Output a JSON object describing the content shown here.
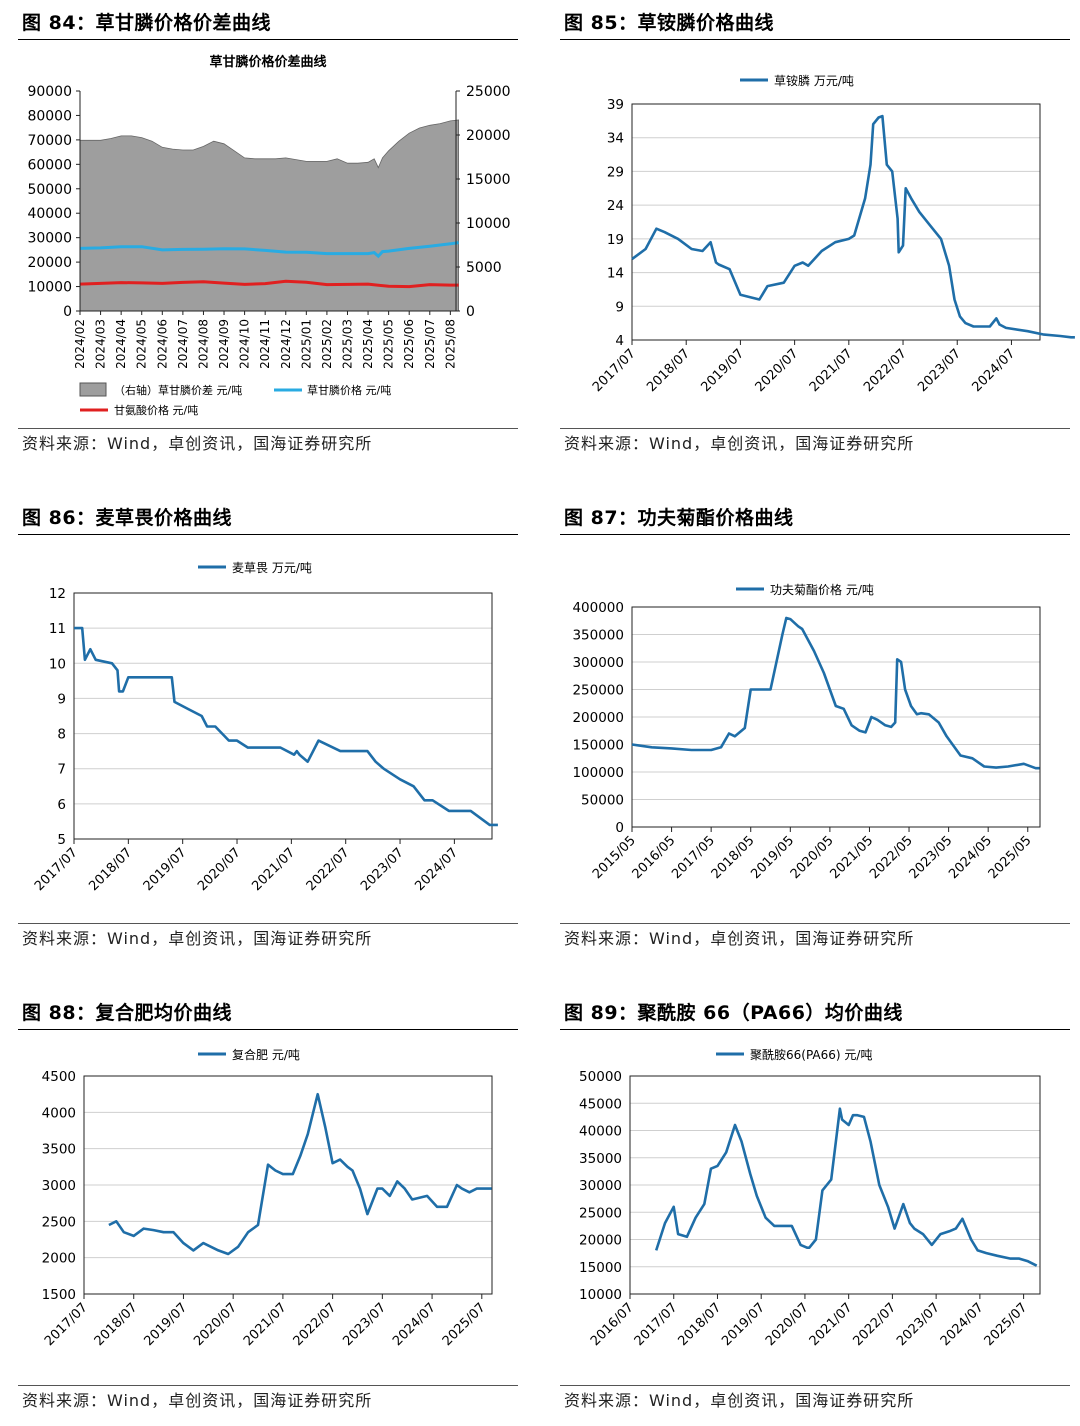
{
  "figures": [
    {
      "caption": "图 84：草甘膦价格价差曲线",
      "source": "资料来源：Wind，卓创资讯，国海证券研究所",
      "chart_data": {
        "type": "line",
        "title": "草甘膦价格价差曲线",
        "left_ylim": [
          0,
          90000
        ],
        "left_yticks": [
          "0",
          "10000",
          "20000",
          "30000",
          "40000",
          "50000",
          "60000",
          "70000",
          "80000",
          "90000"
        ],
        "right_ylim": [
          0,
          25000
        ],
        "right_yticks": [
          "0",
          "5000",
          "10000",
          "15000",
          "20000",
          "25000"
        ],
        "x_tick_labels": [
          "2024/02",
          "2024/03",
          "2024/04",
          "2024/05",
          "2024/06",
          "2024/07",
          "2024/08",
          "2024/09",
          "2024/10",
          "2024/11",
          "2024/12",
          "2025/01",
          "2025/02",
          "2025/03",
          "2025/04",
          "2025/05",
          "2025/06",
          "2025/07",
          "2025/08"
        ],
        "grid": false,
        "legend_position": "bottom",
        "series": [
          {
            "name": "（右轴）草甘膦价差 元/吨",
            "axis": "right",
            "style": "area",
            "color": "#9e9e9e",
            "x": [
              0,
              0.5,
              1,
              1.5,
              2,
              2.5,
              3,
              3.5,
              4,
              4.5,
              5,
              5.5,
              6,
              6.5,
              7,
              7.5,
              8,
              8.5,
              9,
              9.5,
              10,
              10.5,
              11,
              11.5,
              12,
              12.5,
              13,
              13.5,
              14,
              14.3,
              14.5,
              14.7,
              15,
              15.5,
              16,
              16.5,
              17,
              17.5,
              18,
              18.4
            ],
            "values": [
              19400,
              19400,
              19400,
              19600,
              19900,
              19900,
              19700,
              19300,
              18600,
              18400,
              18300,
              18300,
              18700,
              19300,
              19000,
              18200,
              17400,
              17300,
              17300,
              17300,
              17400,
              17200,
              17000,
              17000,
              17000,
              17300,
              16800,
              16800,
              16900,
              17300,
              16300,
              17400,
              18200,
              19300,
              20200,
              20800,
              21100,
              21300,
              21600,
              21700
            ]
          },
          {
            "name": "草甘膦价格 元/吨",
            "axis": "left",
            "style": "line",
            "color": "#29abe2",
            "x": [
              0,
              1,
              2,
              3,
              4,
              5,
              6,
              7,
              8,
              9,
              10,
              11,
              12,
              13,
              14,
              14.3,
              14.5,
              14.7,
              15,
              16,
              17,
              18,
              18.4
            ],
            "values": [
              25600,
              25800,
              26300,
              26300,
              25000,
              25200,
              25300,
              25500,
              25400,
              24800,
              24100,
              24000,
              23500,
              23500,
              23500,
              23900,
              22400,
              24300,
              24500,
              25600,
              26500,
              27500,
              28000
            ]
          },
          {
            "name": "甘氨酸价格 元/吨",
            "axis": "left",
            "style": "line",
            "color": "#e02020",
            "x": [
              0,
              1,
              2,
              3,
              4,
              5,
              6,
              7,
              8,
              9,
              10,
              11,
              12,
              13,
              14,
              15,
              16,
              17,
              18,
              18.4
            ],
            "values": [
              11000,
              11300,
              11600,
              11500,
              11300,
              11700,
              12000,
              11400,
              10900,
              11200,
              12200,
              11800,
              10800,
              10900,
              11000,
              10100,
              10000,
              10800,
              10600,
              10600
            ]
          }
        ]
      }
    },
    {
      "caption": "图 85：草铵膦价格曲线",
      "source": "资料来源：Wind，卓创资讯，国海证券研究所",
      "chart_data": {
        "type": "line",
        "ylim": [
          4,
          39
        ],
        "yticks": [
          "4",
          "9",
          "14",
          "19",
          "24",
          "29",
          "34",
          "39"
        ],
        "x_tick_labels": [
          "2017/07",
          "2018/07",
          "2019/07",
          "2020/07",
          "2021/07",
          "2022/07",
          "2023/07",
          "2024/07"
        ],
        "grid": true,
        "legend_position": "top",
        "series": [
          {
            "name": "草铵膦 万元/吨",
            "color": "#1f6ea8",
            "x": [
              0,
              0.25,
              0.45,
              0.6,
              0.85,
              1.1,
              1.3,
              1.45,
              1.55,
              1.6,
              1.8,
              2.0,
              2.2,
              2.35,
              2.5,
              2.8,
              3.0,
              3.15,
              3.25,
              3.5,
              3.75,
              4.0,
              4.1,
              4.3,
              4.4,
              4.45,
              4.55,
              4.62,
              4.7,
              4.8,
              4.9,
              4.92,
              5.0,
              5.05,
              5.15,
              5.3,
              5.5,
              5.7,
              5.85,
              5.95,
              6.05,
              6.15,
              6.3,
              6.6,
              6.72,
              6.78,
              6.9,
              7.3,
              7.6,
              7.9,
              8.1,
              8.17
            ],
            "values": [
              16,
              17.5,
              20.5,
              20,
              19,
              17.5,
              17.2,
              18.5,
              15.5,
              15.2,
              14.5,
              10.7,
              10.3,
              10,
              12,
              12.5,
              15,
              15.5,
              15,
              17.2,
              18.5,
              19,
              19.5,
              25,
              30,
              36,
              37,
              37.2,
              30,
              29,
              22,
              17,
              18,
              26.5,
              25,
              23,
              21,
              19,
              15,
              10,
              7.5,
              6.5,
              6,
              6,
              7.2,
              6.3,
              5.8,
              5.3,
              4.8,
              4.6,
              4.4,
              4.4
            ]
          }
        ]
      }
    },
    {
      "caption": "图 86：麦草畏价格曲线",
      "source": "资料来源：Wind，卓创资讯，国海证券研究所",
      "chart_data": {
        "type": "line",
        "ylim": [
          5,
          12
        ],
        "yticks": [
          "5",
          "6",
          "7",
          "8",
          "9",
          "10",
          "11",
          "12"
        ],
        "x_tick_labels": [
          "2017/07",
          "2018/07",
          "2019/07",
          "2020/07",
          "2021/07",
          "2022/07",
          "2023/07",
          "2024/07"
        ],
        "grid": true,
        "legend_position": "top",
        "series": [
          {
            "name": "麦草畏 万元/吨",
            "color": "#1f6ea8",
            "x": [
              0,
              0.15,
              0.2,
              0.3,
              0.4,
              0.7,
              0.8,
              0.83,
              0.9,
              1.0,
              1.8,
              1.85,
              2.1,
              2.35,
              2.45,
              2.6,
              2.85,
              3.0,
              3.2,
              3.8,
              4.05,
              4.1,
              4.15,
              4.3,
              4.5,
              4.9,
              5.3,
              5.4,
              5.55,
              5.7,
              6.0,
              6.25,
              6.45,
              6.6,
              6.9,
              7.1,
              7.3,
              7.65,
              7.8
            ],
            "values": [
              11,
              11,
              10.1,
              10.4,
              10.1,
              10,
              9.8,
              9.2,
              9.2,
              9.6,
              9.6,
              8.9,
              8.7,
              8.5,
              8.2,
              8.2,
              7.8,
              7.8,
              7.6,
              7.6,
              7.4,
              7.5,
              7.4,
              7.2,
              7.8,
              7.5,
              7.5,
              7.5,
              7.2,
              7.0,
              6.7,
              6.5,
              6.1,
              6.1,
              5.8,
              5.8,
              5.8,
              5.4,
              5.4
            ]
          }
        ]
      }
    },
    {
      "caption": "图 87：功夫菊酯价格曲线",
      "source": "资料来源：Wind，卓创资讯，国海证券研究所",
      "chart_data": {
        "type": "line",
        "ylim": [
          0,
          400000
        ],
        "yticks": [
          "0",
          "50000",
          "100000",
          "150000",
          "200000",
          "250000",
          "300000",
          "350000",
          "400000"
        ],
        "x_tick_labels": [
          "2015/05",
          "2016/05",
          "2017/05",
          "2018/05",
          "2019/05",
          "2020/05",
          "2021/05",
          "2022/05",
          "2023/05",
          "2024/05",
          "2025/05"
        ],
        "grid": true,
        "legend_position": "top",
        "series": [
          {
            "name": "功夫菊酯价格 元/吨",
            "color": "#1f6ea8",
            "x": [
              0,
              0.5,
              1,
              1.5,
              2,
              2.25,
              2.45,
              2.6,
              2.85,
              3.0,
              3.15,
              3.5,
              3.8,
              3.9,
              4.0,
              4.2,
              4.3,
              4.6,
              4.85,
              5.15,
              5.35,
              5.55,
              5.75,
              5.9,
              6.05,
              6.2,
              6.4,
              6.55,
              6.65,
              6.7,
              6.8,
              6.9,
              7.05,
              7.2,
              7.3,
              7.5,
              7.75,
              7.95,
              8.3,
              8.6,
              8.9,
              9.2,
              9.5,
              9.9,
              10.2,
              10.3
            ],
            "values": [
              150000,
              145000,
              143000,
              140000,
              140000,
              145000,
              170000,
              165000,
              180000,
              250000,
              250000,
              250000,
              350000,
              380000,
              378000,
              365000,
              360000,
              320000,
              280000,
              220000,
              215000,
              185000,
              175000,
              172000,
              200000,
              195000,
              185000,
              182000,
              190000,
              305000,
              300000,
              250000,
              220000,
              205000,
              207000,
              205000,
              190000,
              165000,
              130000,
              125000,
              110000,
              108000,
              110000,
              115000,
              107000,
              107000
            ]
          }
        ]
      }
    },
    {
      "caption": "图 88：复合肥均价曲线",
      "source": "资料来源：Wind，卓创资讯，国海证券研究所",
      "chart_data": {
        "type": "line",
        "ylim": [
          1500,
          4500
        ],
        "yticks": [
          "1500",
          "2000",
          "2500",
          "3000",
          "3500",
          "4000",
          "4500"
        ],
        "x_tick_labels": [
          "2017/07",
          "2018/07",
          "2019/07",
          "2020/07",
          "2021/07",
          "2022/07",
          "2023/07",
          "2024/07",
          "2025/07"
        ],
        "grid": true,
        "legend_position": "top",
        "series": [
          {
            "name": "复合肥 元/吨",
            "color": "#1f6ea8",
            "x": [
              0.5,
              0.65,
              0.8,
              1.0,
              1.2,
              1.4,
              1.6,
              1.8,
              2.0,
              2.2,
              2.4,
              2.7,
              2.9,
              3.1,
              3.3,
              3.5,
              3.7,
              3.85,
              4.0,
              4.1,
              4.2,
              4.35,
              4.5,
              4.7,
              4.85,
              5.0,
              5.15,
              5.3,
              5.4,
              5.55,
              5.7,
              5.9,
              6.0,
              6.15,
              6.3,
              6.45,
              6.6,
              6.9,
              7.1,
              7.3,
              7.5,
              7.6,
              7.75,
              7.9,
              8.1,
              8.2
            ],
            "values": [
              2450,
              2500,
              2350,
              2300,
              2400,
              2380,
              2350,
              2350,
              2200,
              2100,
              2200,
              2100,
              2050,
              2150,
              2350,
              2450,
              3280,
              3200,
              3150,
              3150,
              3150,
              3400,
              3700,
              4250,
              3800,
              3300,
              3350,
              3250,
              3200,
              2950,
              2600,
              2950,
              2950,
              2850,
              3050,
              2950,
              2800,
              2850,
              2700,
              2700,
              3000,
              2950,
              2900,
              2950,
              2950,
              2950
            ]
          }
        ]
      }
    },
    {
      "caption": "图 89：聚酰胺 66（PA66）均价曲线",
      "source": "资料来源：Wind，卓创资讯，国海证券研究所",
      "chart_data": {
        "type": "line",
        "ylim": [
          10000,
          50000
        ],
        "yticks": [
          "10000",
          "15000",
          "20000",
          "25000",
          "30000",
          "35000",
          "40000",
          "45000",
          "50000"
        ],
        "x_tick_labels": [
          "2016/07",
          "2017/07",
          "2018/07",
          "2019/07",
          "2020/07",
          "2021/07",
          "2022/07",
          "2023/07",
          "2024/07",
          "2025/07"
        ],
        "grid": true,
        "legend_position": "top",
        "series": [
          {
            "name": "聚酰胺66(PA66) 元/吨",
            "color": "#1f6ea8",
            "x": [
              0.6,
              0.8,
              1.0,
              1.1,
              1.3,
              1.5,
              1.7,
              1.85,
              2.0,
              2.2,
              2.4,
              2.55,
              2.75,
              2.9,
              3.1,
              3.3,
              3.5,
              3.7,
              3.9,
              4.05,
              4.1,
              4.25,
              4.4,
              4.6,
              4.8,
              4.85,
              5.0,
              5.1,
              5.2,
              5.35,
              5.5,
              5.7,
              5.9,
              6.05,
              6.25,
              6.4,
              6.5,
              6.7,
              6.9,
              7.1,
              7.3,
              7.45,
              7.6,
              7.8,
              7.95,
              8.15,
              8.4,
              8.7,
              8.9,
              9.1,
              9.3
            ],
            "values": [
              18000,
              23000,
              26000,
              21000,
              20500,
              24000,
              26500,
              33000,
              33500,
              36000,
              41000,
              38000,
              32000,
              28000,
              24000,
              22500,
              22500,
              22500,
              19000,
              18500,
              18500,
              20000,
              29000,
              31000,
              44000,
              42000,
              41000,
              42800,
              42800,
              42500,
              38000,
              30000,
              26000,
              22000,
              26500,
              23000,
              22000,
              21000,
              19000,
              21000,
              21500,
              22000,
              23800,
              20000,
              18000,
              17500,
              17000,
              16500,
              16500,
              16000,
              15200
            ]
          }
        ]
      }
    }
  ]
}
